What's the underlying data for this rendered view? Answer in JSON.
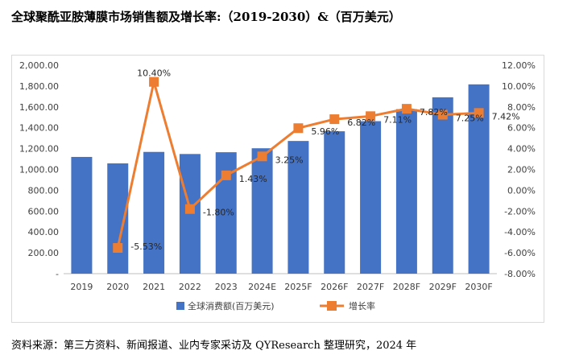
{
  "title": "全球聚酰亚胺薄膜市场销售额及增长率:（2019-2030）&（百万美元）",
  "source": "资料来源：第三方资料、新闻报道、业内专家采访及 QYResearch 整理研究，2024 年",
  "colors": {
    "bar": "#4472C4",
    "line": "#ED7D31"
  },
  "chart_data": {
    "type": "bar",
    "categories": [
      "2019",
      "2020",
      "2021",
      "2022",
      "2023",
      "2024E",
      "2025F",
      "2026F",
      "2027F",
      "2028F",
      "2029F",
      "2030F"
    ],
    "series": [
      {
        "name": "全球消费额(百万美元)",
        "type": "bar",
        "axis": "left",
        "values": [
          1120,
          1058,
          1168,
          1148,
          1165,
          1203,
          1273,
          1366,
          1463,
          1578,
          1692,
          1816
        ]
      },
      {
        "name": "增长率",
        "type": "line",
        "axis": "right",
        "values": [
          null,
          -5.53,
          10.4,
          -1.8,
          1.43,
          3.25,
          5.96,
          6.82,
          7.11,
          7.82,
          7.25,
          7.42
        ],
        "labels": [
          "",
          "-5.53%",
          "10.40%",
          "-1.80%",
          "1.43%",
          "3.25%",
          "5.96%",
          "6.82%",
          "7.11%",
          "7.82%",
          "7.25%",
          "7.42%"
        ]
      }
    ],
    "y_left": {
      "min": 0,
      "max": 2000,
      "step": 200,
      "ticks": [
        "-",
        "200.00",
        "400.00",
        "600.00",
        "800.00",
        "1,000.00",
        "1,200.00",
        "1,400.00",
        "1,600.00",
        "1,800.00",
        "2,000.00"
      ]
    },
    "y_right": {
      "min": -8,
      "max": 12,
      "step": 2,
      "ticks": [
        "-8.00%",
        "-6.00%",
        "-4.00%",
        "-2.00%",
        "0.00%",
        "2.00%",
        "4.00%",
        "6.00%",
        "8.00%",
        "10.00%",
        "12.00%"
      ]
    },
    "grid": false,
    "legend": "bottom"
  }
}
